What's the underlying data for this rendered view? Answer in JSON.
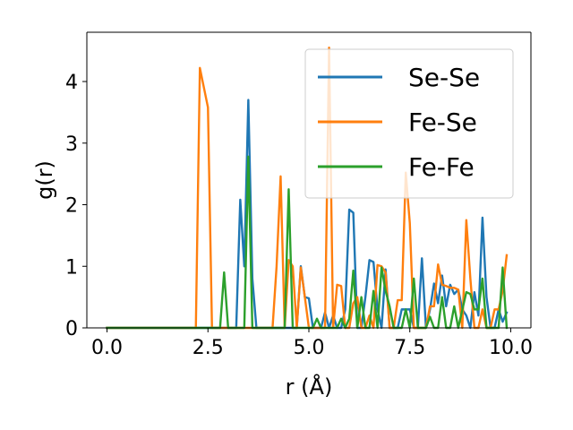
{
  "chart_data": {
    "type": "line",
    "xlabel": "r (Å)",
    "ylabel": "g(r)",
    "xlim": [
      -0.5,
      10.5
    ],
    "ylim": [
      0,
      4.8
    ],
    "xticks": [
      {
        "value": 0.0,
        "label": "0.0"
      },
      {
        "value": 2.5,
        "label": "2.5"
      },
      {
        "value": 5.0,
        "label": "5.0"
      },
      {
        "value": 7.5,
        "label": "7.5"
      },
      {
        "value": 10.0,
        "label": "10.0"
      }
    ],
    "yticks": [
      {
        "value": 0,
        "label": "0"
      },
      {
        "value": 1,
        "label": "1"
      },
      {
        "value": 2,
        "label": "2"
      },
      {
        "value": 3,
        "label": "3"
      },
      {
        "value": 4,
        "label": "4"
      }
    ],
    "grid": false,
    "legend_position": "top-right",
    "series": [
      {
        "name": "Se-Se",
        "color": "#1f77b4",
        "points": [
          [
            0,
            0
          ],
          [
            3.2,
            0
          ],
          [
            3.3,
            2.08
          ],
          [
            3.4,
            1.0
          ],
          [
            3.5,
            3.7
          ],
          [
            3.6,
            0.8
          ],
          [
            3.7,
            0
          ],
          [
            4.7,
            0
          ],
          [
            4.8,
            1.0
          ],
          [
            4.9,
            0.5
          ],
          [
            5.0,
            0.48
          ],
          [
            5.1,
            0
          ],
          [
            5.3,
            0
          ],
          [
            5.4,
            0.25
          ],
          [
            5.5,
            0
          ],
          [
            5.6,
            0.2
          ],
          [
            5.7,
            0
          ],
          [
            5.8,
            0
          ],
          [
            5.9,
            0.3
          ],
          [
            6.0,
            1.92
          ],
          [
            6.1,
            1.87
          ],
          [
            6.2,
            0
          ],
          [
            6.3,
            0
          ],
          [
            6.4,
            0.5
          ],
          [
            6.5,
            1.1
          ],
          [
            6.6,
            1.07
          ],
          [
            6.7,
            0.3
          ],
          [
            6.8,
            0
          ],
          [
            6.9,
            0.95
          ],
          [
            7.0,
            0
          ],
          [
            7.2,
            0
          ],
          [
            7.3,
            0.3
          ],
          [
            7.5,
            0.3
          ],
          [
            7.6,
            0
          ],
          [
            7.7,
            0
          ],
          [
            7.8,
            1.13
          ],
          [
            7.9,
            0
          ],
          [
            8.0,
            0.3
          ],
          [
            8.1,
            0.72
          ],
          [
            8.2,
            0.4
          ],
          [
            8.3,
            0.85
          ],
          [
            8.4,
            0.35
          ],
          [
            8.5,
            0.7
          ],
          [
            8.6,
            0.55
          ],
          [
            8.7,
            0.62
          ],
          [
            8.8,
            0.3
          ],
          [
            8.9,
            0.2
          ],
          [
            9.0,
            0
          ],
          [
            9.1,
            0.58
          ],
          [
            9.2,
            0.2
          ],
          [
            9.3,
            1.79
          ],
          [
            9.4,
            0.5
          ],
          [
            9.5,
            0
          ],
          [
            9.6,
            0
          ],
          [
            9.7,
            0.3
          ],
          [
            9.8,
            0.1
          ],
          [
            9.9,
            0.25
          ]
        ]
      },
      {
        "name": "Fe-Se",
        "color": "#ff7f0e",
        "points": [
          [
            0,
            0
          ],
          [
            2.2,
            0
          ],
          [
            2.3,
            4.22
          ],
          [
            2.4,
            3.9
          ],
          [
            2.5,
            3.58
          ],
          [
            2.6,
            0
          ],
          [
            4.1,
            0
          ],
          [
            4.2,
            1.0
          ],
          [
            4.3,
            2.46
          ],
          [
            4.4,
            0
          ],
          [
            4.5,
            1.1
          ],
          [
            4.6,
            1.0
          ],
          [
            4.7,
            0
          ],
          [
            4.8,
            0.98
          ],
          [
            4.9,
            0.5
          ],
          [
            5.0,
            0
          ],
          [
            5.4,
            0
          ],
          [
            5.5,
            4.55
          ],
          [
            5.6,
            0
          ],
          [
            5.7,
            0.7
          ],
          [
            5.8,
            0.68
          ],
          [
            5.9,
            0
          ],
          [
            6.0,
            0
          ],
          [
            6.1,
            0.4
          ],
          [
            6.2,
            0.5
          ],
          [
            6.3,
            0
          ],
          [
            6.4,
            0
          ],
          [
            6.5,
            0.2
          ],
          [
            6.6,
            0
          ],
          [
            6.7,
            1.02
          ],
          [
            6.8,
            1.0
          ],
          [
            6.9,
            0.9
          ],
          [
            7.0,
            0
          ],
          [
            7.1,
            0
          ],
          [
            7.2,
            0.45
          ],
          [
            7.3,
            0.45
          ],
          [
            7.4,
            2.52
          ],
          [
            7.5,
            1.7
          ],
          [
            7.6,
            0
          ],
          [
            7.9,
            0
          ],
          [
            8.0,
            0.35
          ],
          [
            8.1,
            0.35
          ],
          [
            8.2,
            1.03
          ],
          [
            8.3,
            0.7
          ],
          [
            8.4,
            0.68
          ],
          [
            8.5,
            0.65
          ],
          [
            8.6,
            0.65
          ],
          [
            8.7,
            0.62
          ],
          [
            8.8,
            0
          ],
          [
            8.9,
            1.75
          ],
          [
            9.0,
            0.8
          ],
          [
            9.1,
            0
          ],
          [
            9.2,
            0
          ],
          [
            9.3,
            0.3
          ],
          [
            9.4,
            0
          ],
          [
            9.5,
            0
          ],
          [
            9.6,
            0.3
          ],
          [
            9.7,
            0.3
          ],
          [
            9.8,
            0.6
          ],
          [
            9.9,
            1.18
          ]
        ]
      },
      {
        "name": "Fe-Fe",
        "color": "#2ca02c",
        "points": [
          [
            0,
            0
          ],
          [
            2.8,
            0
          ],
          [
            2.9,
            0.9
          ],
          [
            3.0,
            0
          ],
          [
            3.4,
            0
          ],
          [
            3.5,
            2.78
          ],
          [
            3.6,
            0
          ],
          [
            4.4,
            0
          ],
          [
            4.5,
            2.25
          ],
          [
            4.6,
            0
          ],
          [
            5.1,
            0
          ],
          [
            5.2,
            0.15
          ],
          [
            5.3,
            0
          ],
          [
            5.7,
            0
          ],
          [
            5.8,
            0.15
          ],
          [
            5.9,
            0
          ],
          [
            6.0,
            0.15
          ],
          [
            6.1,
            0.93
          ],
          [
            6.2,
            0
          ],
          [
            6.3,
            0.5
          ],
          [
            6.4,
            0
          ],
          [
            6.5,
            0
          ],
          [
            6.6,
            0.6
          ],
          [
            6.7,
            0
          ],
          [
            6.8,
            0.98
          ],
          [
            6.9,
            0.6
          ],
          [
            7.0,
            0.35
          ],
          [
            7.1,
            0
          ],
          [
            7.3,
            0
          ],
          [
            7.4,
            0.3
          ],
          [
            7.5,
            0
          ],
          [
            7.6,
            0.8
          ],
          [
            7.7,
            0
          ],
          [
            7.9,
            0
          ],
          [
            8.0,
            0.18
          ],
          [
            8.1,
            0
          ],
          [
            8.2,
            0
          ],
          [
            8.3,
            0.5
          ],
          [
            8.4,
            0
          ],
          [
            8.5,
            0
          ],
          [
            8.6,
            0.35
          ],
          [
            8.7,
            0
          ],
          [
            8.9,
            0.58
          ],
          [
            9.0,
            0.55
          ],
          [
            9.1,
            0.3
          ],
          [
            9.2,
            0.3
          ],
          [
            9.3,
            0.8
          ],
          [
            9.4,
            0
          ],
          [
            9.7,
            0
          ],
          [
            9.8,
            0.98
          ],
          [
            9.9,
            0
          ]
        ]
      }
    ]
  }
}
